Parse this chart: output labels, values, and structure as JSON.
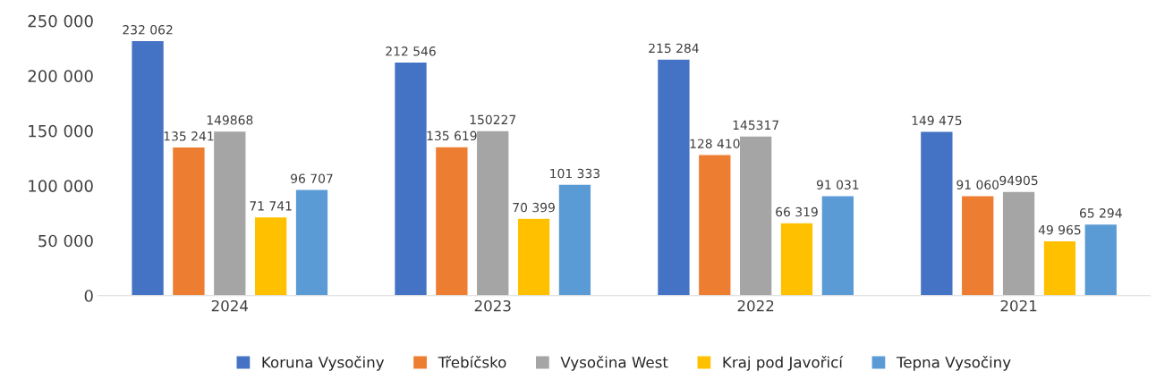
{
  "chart_data": {
    "type": "bar",
    "categories": [
      "2024",
      "2023",
      "2022",
      "2021"
    ],
    "series": [
      {
        "name": "Koruna Vysočiny",
        "color": "#4472c4",
        "values": [
          232062,
          212546,
          215284,
          149475
        ],
        "value_labels": [
          "232 062",
          "212 546",
          "215 284",
          "149 475"
        ]
      },
      {
        "name": "Třebíčsko",
        "color": "#ed7d31",
        "values": [
          135241,
          135619,
          128410,
          91060
        ],
        "value_labels": [
          "135 241",
          "135 619",
          "128 410",
          "91 060"
        ]
      },
      {
        "name": "Vysočina West",
        "color": "#a5a5a5",
        "values": [
          149868,
          150227,
          145317,
          94905
        ],
        "value_labels": [
          "149868",
          "150227",
          "145317",
          "94905"
        ]
      },
      {
        "name": "Kraj pod Javořicí",
        "color": "#ffc000",
        "values": [
          71741,
          70399,
          66319,
          49965
        ],
        "value_labels": [
          "71 741",
          "70 399",
          "66 319",
          "49 965"
        ]
      },
      {
        "name": "Tepna Vysočiny",
        "color": "#5b9bd5",
        "values": [
          96707,
          101333,
          91031,
          65294
        ],
        "value_labels": [
          "96 707",
          "101 333",
          "91 031",
          "65 294"
        ]
      }
    ],
    "ylim": [
      0,
      250000
    ],
    "yticks": [
      0,
      {
        "value": 50000,
        "label": "50 000"
      },
      {
        "value": 100000,
        "label": "100 000"
      },
      {
        "value": 150000,
        "label": "150 000"
      },
      {
        "value": 200000,
        "label": "200 000"
      },
      {
        "value": 250000,
        "label": "250 000"
      }
    ],
    "grid": false,
    "legend": "bottom"
  }
}
